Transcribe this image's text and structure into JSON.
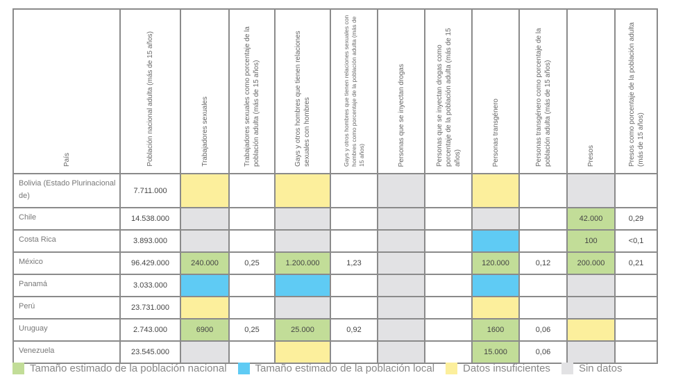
{
  "headers": [
    "País",
    "Población nacional adulta (más de 15 años)",
    "Trabajadores sexuales",
    "Trabajadores sexuales como porcentaje de la población adulta (más de 15 años)",
    "Gays y otros hombres que tienen relaciones sexuales con hombres",
    "Gays y otros hombres que tienen relaciones sexuales con hombres como porcentaje de la población adulta (más de 15 años)",
    "Personas que se inyectan drogas",
    "Personas que se inyectan drogas como porcentaje de la población adulta (más de 15 años)",
    "Personas transgénero",
    "Personas transgénero como porcentaje de la población adulta (más de 15 años)",
    "Presos",
    "Presos como porcentaje de la población adulta (más de 15 años)"
  ],
  "colors": {
    "g": "#c2dd98",
    "b": "#5fcbf4",
    "y": "#fcef9c",
    "n": "#e2e2e4"
  },
  "rows": [
    {
      "country": "Bolivia (Estado Plurinacional de)",
      "population": "7.711.000",
      "cells": [
        [
          "",
          "y"
        ],
        [
          "",
          ""
        ],
        [
          "",
          "y"
        ],
        [
          "",
          ""
        ],
        [
          "",
          "n"
        ],
        [
          "",
          ""
        ],
        [
          "",
          "y"
        ],
        [
          "",
          ""
        ],
        [
          "",
          "n"
        ],
        [
          "",
          ""
        ]
      ]
    },
    {
      "country": "Chile",
      "population": "14.538.000",
      "cells": [
        [
          "",
          "n"
        ],
        [
          "",
          ""
        ],
        [
          "",
          "n"
        ],
        [
          "",
          ""
        ],
        [
          "",
          "n"
        ],
        [
          "",
          ""
        ],
        [
          "",
          "n"
        ],
        [
          "",
          ""
        ],
        [
          "42.000",
          "g"
        ],
        [
          "0,29",
          ""
        ]
      ]
    },
    {
      "country": "Costa Rica",
      "population": "3.893.000",
      "cells": [
        [
          "",
          "n"
        ],
        [
          "",
          ""
        ],
        [
          "",
          "n"
        ],
        [
          "",
          ""
        ],
        [
          "",
          "n"
        ],
        [
          "",
          ""
        ],
        [
          "",
          "b"
        ],
        [
          "",
          ""
        ],
        [
          "100",
          "g"
        ],
        [
          "<0,1",
          ""
        ]
      ]
    },
    {
      "country": "México",
      "population": "96.429.000",
      "cells": [
        [
          "240.000",
          "g"
        ],
        [
          "0,25",
          ""
        ],
        [
          "1.200.000",
          "g"
        ],
        [
          "1,23",
          ""
        ],
        [
          "",
          "n"
        ],
        [
          "",
          ""
        ],
        [
          "120.000",
          "g"
        ],
        [
          "0,12",
          ""
        ],
        [
          "200.000",
          "g"
        ],
        [
          "0,21",
          ""
        ]
      ]
    },
    {
      "country": "Panamá",
      "population": "3.033.000",
      "cells": [
        [
          "",
          "b"
        ],
        [
          "",
          ""
        ],
        [
          "",
          "b"
        ],
        [
          "",
          ""
        ],
        [
          "",
          "n"
        ],
        [
          "",
          ""
        ],
        [
          "",
          "b"
        ],
        [
          "",
          ""
        ],
        [
          "",
          "n"
        ],
        [
          "",
          ""
        ]
      ]
    },
    {
      "country": "Perú",
      "population": "23.731.000",
      "cells": [
        [
          "",
          "y"
        ],
        [
          "",
          ""
        ],
        [
          "",
          "n"
        ],
        [
          "",
          ""
        ],
        [
          "",
          "n"
        ],
        [
          "",
          ""
        ],
        [
          "",
          "y"
        ],
        [
          "",
          ""
        ],
        [
          "",
          "n"
        ],
        [
          "",
          ""
        ]
      ]
    },
    {
      "country": "Uruguay",
      "population": "2.743.000",
      "cells": [
        [
          "6900",
          "g"
        ],
        [
          "0,25",
          ""
        ],
        [
          "25.000",
          "g"
        ],
        [
          "0,92",
          ""
        ],
        [
          "",
          "n"
        ],
        [
          "",
          ""
        ],
        [
          "1600",
          "g"
        ],
        [
          "0,06",
          ""
        ],
        [
          "",
          "y"
        ],
        [
          "",
          ""
        ]
      ]
    },
    {
      "country": "Venezuela",
      "population": "23.545.000",
      "cells": [
        [
          "",
          "n"
        ],
        [
          "",
          ""
        ],
        [
          "",
          "y"
        ],
        [
          "",
          ""
        ],
        [
          "",
          "n"
        ],
        [
          "",
          ""
        ],
        [
          "15.000",
          "g"
        ],
        [
          "0,06",
          ""
        ],
        [
          "",
          "n"
        ],
        [
          "",
          ""
        ]
      ]
    }
  ],
  "legend": [
    {
      "label": "Tamaño estimado de la población nacional",
      "color": "g"
    },
    {
      "label": "Tamaño estimado de la población local",
      "color": "b"
    },
    {
      "label": "Datos insuficientes",
      "color": "y"
    },
    {
      "label": "Sin datos",
      "color": "n"
    }
  ]
}
